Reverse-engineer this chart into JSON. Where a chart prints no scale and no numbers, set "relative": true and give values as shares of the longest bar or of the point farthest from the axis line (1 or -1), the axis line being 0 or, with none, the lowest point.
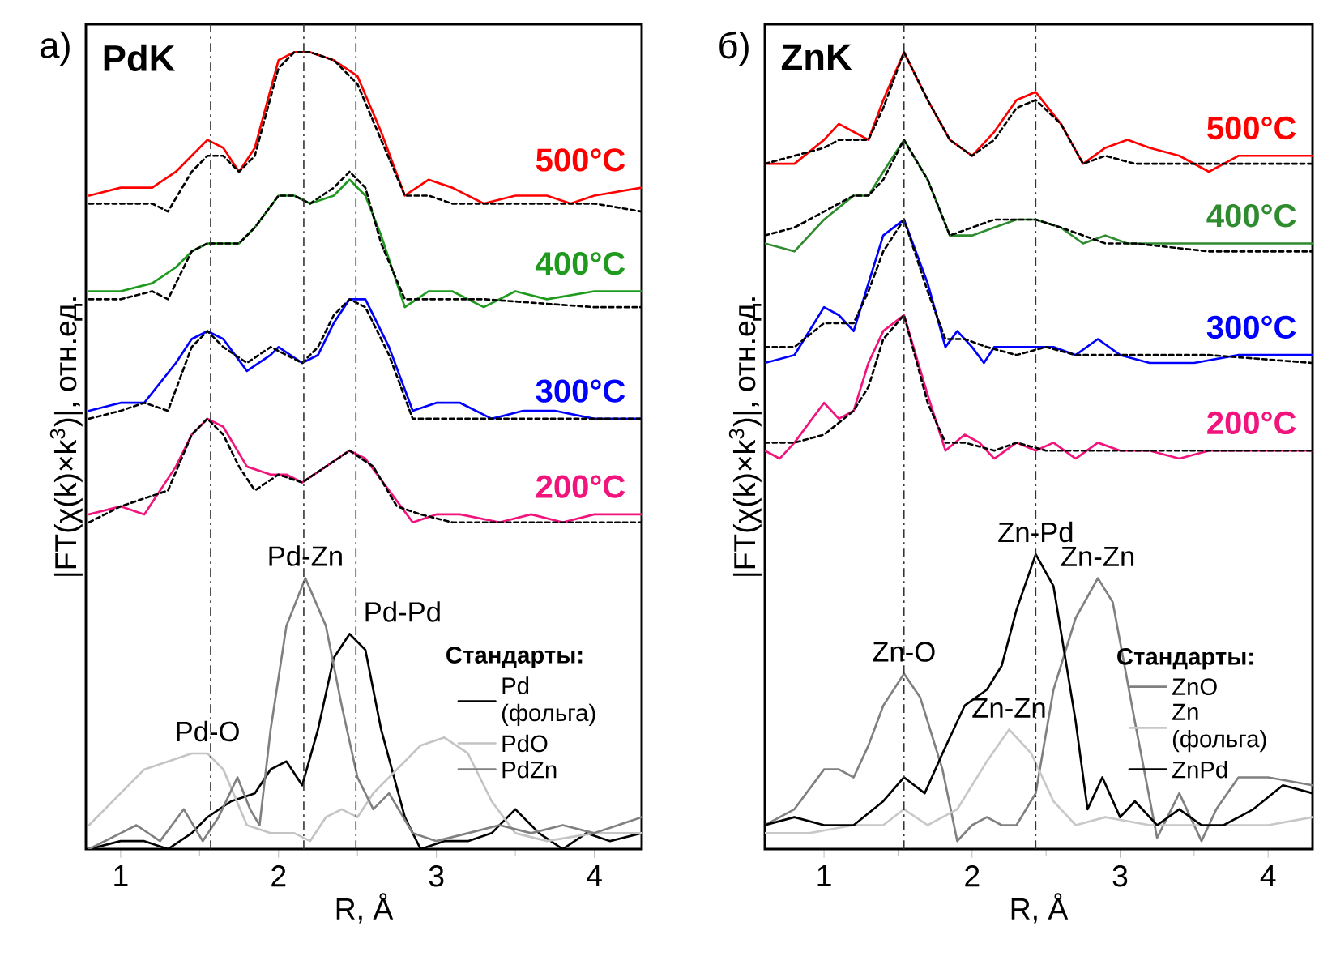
{
  "chart_data": [
    {
      "type": "line",
      "title": "а)",
      "xlabel": "R, Å",
      "ylabel": "|FT(χ(k)×k$^{3}$)|, отн.ед.",
      "relative": true,
      "xlim": [
        0.78,
        4.3
      ],
      "xticks": [
        1,
        2,
        3,
        4
      ],
      "legend": "bottom right",
      "legend_title": "Стандарты:",
      "annotations": [
        "PdK",
        {
          "text": "Pd-O",
          "x": 1.55,
          "y": 0.12
        },
        {
          "text": "Pd-Zn",
          "x": 2.17,
          "y": 0.34
        },
        {
          "text": "Pd-Pd",
          "x": 2.49,
          "y": 0.27
        }
      ],
      "ref_lines": [
        {
          "axis": "x",
          "value": 1.57,
          "color": "#333333"
        },
        {
          "axis": "x",
          "value": 2.16,
          "color": "#333333"
        },
        {
          "axis": "x",
          "value": 2.49,
          "color": "#333333"
        }
      ],
      "series": [
        {
          "name": "500°C",
          "color": "#ff0000",
          "x": [
            0.8,
            1.0,
            1.2,
            1.35,
            1.45,
            1.55,
            1.65,
            1.75,
            1.85,
            2.0,
            2.1,
            2.2,
            2.35,
            2.5,
            2.65,
            2.8,
            2.95,
            3.1,
            3.3,
            3.5,
            3.7,
            3.85,
            4.0,
            4.3
          ],
          "values": [
            0.82,
            0.83,
            0.83,
            0.85,
            0.87,
            0.89,
            0.88,
            0.85,
            0.88,
            0.99,
            1.0,
            1.0,
            0.99,
            0.97,
            0.9,
            0.82,
            0.84,
            0.83,
            0.81,
            0.82,
            0.82,
            0.81,
            0.82,
            0.83
          ]
        },
        {
          "color": "#000000",
          "line_style": "dotted",
          "x": [
            0.8,
            1.0,
            1.2,
            1.3,
            1.45,
            1.55,
            1.65,
            1.75,
            1.85,
            2.0,
            2.1,
            2.2,
            2.35,
            2.5,
            2.65,
            2.8,
            2.95,
            3.1,
            3.5,
            4.0,
            4.3
          ],
          "values": [
            0.81,
            0.81,
            0.81,
            0.8,
            0.85,
            0.87,
            0.87,
            0.85,
            0.87,
            0.98,
            1.0,
            1.0,
            0.99,
            0.96,
            0.89,
            0.82,
            0.82,
            0.81,
            0.81,
            0.81,
            0.8
          ]
        },
        {
          "name": "400°C",
          "color": "#1f9a1f",
          "x": [
            0.8,
            1.0,
            1.2,
            1.35,
            1.45,
            1.55,
            1.65,
            1.75,
            1.85,
            2.0,
            2.1,
            2.2,
            2.35,
            2.45,
            2.55,
            2.65,
            2.8,
            2.95,
            3.1,
            3.3,
            3.5,
            3.7,
            4.0,
            4.3
          ],
          "values": [
            0.7,
            0.7,
            0.71,
            0.73,
            0.75,
            0.76,
            0.76,
            0.76,
            0.78,
            0.82,
            0.82,
            0.81,
            0.82,
            0.84,
            0.82,
            0.77,
            0.68,
            0.7,
            0.7,
            0.68,
            0.7,
            0.69,
            0.7,
            0.7
          ]
        },
        {
          "color": "#000000",
          "line_style": "dotted",
          "x": [
            0.8,
            1.0,
            1.2,
            1.3,
            1.45,
            1.55,
            1.65,
            1.75,
            1.85,
            2.0,
            2.1,
            2.2,
            2.35,
            2.45,
            2.55,
            2.65,
            2.8,
            3.0,
            3.3,
            4.0,
            4.3
          ],
          "values": [
            0.69,
            0.69,
            0.7,
            0.69,
            0.75,
            0.76,
            0.76,
            0.76,
            0.78,
            0.82,
            0.82,
            0.81,
            0.83,
            0.85,
            0.83,
            0.76,
            0.69,
            0.69,
            0.69,
            0.68,
            0.68
          ]
        },
        {
          "name": "300°C",
          "color": "#0000ff",
          "x": [
            0.8,
            1.0,
            1.15,
            1.35,
            1.45,
            1.55,
            1.65,
            1.8,
            1.95,
            2.0,
            2.15,
            2.25,
            2.35,
            2.45,
            2.55,
            2.7,
            2.85,
            3.0,
            3.15,
            3.35,
            3.55,
            3.75,
            4.0,
            4.3
          ],
          "values": [
            0.55,
            0.56,
            0.56,
            0.61,
            0.64,
            0.65,
            0.64,
            0.6,
            0.62,
            0.63,
            0.61,
            0.62,
            0.66,
            0.69,
            0.69,
            0.63,
            0.55,
            0.56,
            0.56,
            0.54,
            0.55,
            0.55,
            0.54,
            0.54
          ]
        },
        {
          "color": "#000000",
          "line_style": "dotted",
          "x": [
            0.8,
            1.0,
            1.15,
            1.3,
            1.45,
            1.55,
            1.65,
            1.8,
            1.95,
            2.05,
            2.15,
            2.25,
            2.35,
            2.45,
            2.55,
            2.7,
            2.85,
            3.0,
            3.5,
            4.3
          ],
          "values": [
            0.54,
            0.55,
            0.56,
            0.55,
            0.63,
            0.65,
            0.63,
            0.61,
            0.63,
            0.62,
            0.61,
            0.63,
            0.67,
            0.69,
            0.68,
            0.62,
            0.54,
            0.54,
            0.54,
            0.54
          ]
        },
        {
          "name": "200°C",
          "color": "#f0147c",
          "x": [
            0.8,
            1.0,
            1.15,
            1.35,
            1.45,
            1.55,
            1.65,
            1.8,
            1.95,
            2.05,
            2.15,
            2.3,
            2.45,
            2.55,
            2.7,
            2.85,
            3.0,
            3.15,
            3.4,
            3.6,
            3.8,
            4.0,
            4.3
          ],
          "values": [
            0.42,
            0.43,
            0.42,
            0.48,
            0.52,
            0.54,
            0.53,
            0.48,
            0.47,
            0.47,
            0.46,
            0.48,
            0.5,
            0.49,
            0.45,
            0.41,
            0.42,
            0.42,
            0.41,
            0.42,
            0.41,
            0.42,
            0.42
          ]
        },
        {
          "color": "#000000",
          "line_style": "dotted",
          "x": [
            0.8,
            1.0,
            1.15,
            1.3,
            1.45,
            1.55,
            1.65,
            1.75,
            1.85,
            2.0,
            2.15,
            2.3,
            2.45,
            2.6,
            2.75,
            2.9,
            3.1,
            3.5,
            4.3
          ],
          "values": [
            0.41,
            0.43,
            0.44,
            0.45,
            0.52,
            0.54,
            0.52,
            0.48,
            0.45,
            0.47,
            0.46,
            0.48,
            0.5,
            0.48,
            0.43,
            0.42,
            0.41,
            0.41,
            0.41
          ]
        },
        {
          "name": "Pd (фольга)",
          "color": "#000000",
          "x": [
            0.8,
            1.0,
            1.15,
            1.3,
            1.45,
            1.55,
            1.7,
            1.85,
            1.95,
            2.05,
            2.15,
            2.25,
            2.35,
            2.45,
            2.55,
            2.65,
            2.8,
            2.9,
            3.05,
            3.2,
            3.35,
            3.5,
            3.65,
            3.8,
            3.95,
            4.1,
            4.3
          ],
          "values": [
            0.0,
            0.01,
            0.01,
            0.0,
            0.02,
            0.04,
            0.06,
            0.07,
            0.1,
            0.11,
            0.08,
            0.15,
            0.24,
            0.27,
            0.25,
            0.15,
            0.04,
            0.0,
            0.01,
            0.01,
            0.02,
            0.05,
            0.02,
            0.0,
            0.02,
            0.01,
            0.02
          ]
        },
        {
          "name": "PdO",
          "color": "#c4c4c4",
          "x": [
            0.8,
            1.0,
            1.15,
            1.3,
            1.45,
            1.55,
            1.65,
            1.8,
            1.95,
            2.1,
            2.2,
            2.3,
            2.4,
            2.5,
            2.6,
            2.75,
            2.9,
            3.05,
            3.2,
            3.35,
            3.5,
            3.7,
            4.0,
            4.3
          ],
          "values": [
            0.03,
            0.07,
            0.1,
            0.11,
            0.12,
            0.12,
            0.1,
            0.03,
            0.02,
            0.02,
            0.01,
            0.04,
            0.05,
            0.04,
            0.07,
            0.1,
            0.13,
            0.14,
            0.12,
            0.06,
            0.02,
            0.01,
            0.02,
            0.02
          ]
        },
        {
          "name": "PdZn",
          "color": "#808080",
          "x": [
            0.8,
            1.0,
            1.1,
            1.25,
            1.4,
            1.52,
            1.62,
            1.74,
            1.82,
            1.88,
            1.95,
            2.05,
            2.17,
            2.3,
            2.4,
            2.5,
            2.6,
            2.7,
            2.85,
            3.0,
            3.2,
            3.4,
            3.6,
            3.8,
            4.0,
            4.3
          ],
          "values": [
            0.0,
            0.02,
            0.03,
            0.01,
            0.05,
            0.01,
            0.04,
            0.09,
            0.05,
            0.03,
            0.15,
            0.28,
            0.34,
            0.28,
            0.18,
            0.09,
            0.05,
            0.07,
            0.02,
            0.01,
            0.02,
            0.03,
            0.02,
            0.03,
            0.02,
            0.04
          ]
        }
      ]
    },
    {
      "type": "line",
      "title": "б)",
      "xlabel": "R, Å",
      "ylabel": "|FT(χ(k)×k$^{3}$)|, отн.ед.",
      "relative": true,
      "xlim": [
        0.6,
        4.3
      ],
      "xticks": [
        1,
        2,
        3,
        4
      ],
      "legend": "bottom right",
      "legend_title": "Стандарты:",
      "annotations": [
        "ZnK",
        {
          "text": "Zn-O",
          "x": 1.54,
          "y": 0.22
        },
        {
          "text": "Zn-Zn",
          "x": 2.25,
          "y": 0.15
        },
        {
          "text": "Zn-Pd",
          "x": 2.43,
          "y": 0.37
        },
        {
          "text": "Zn-Zn",
          "x": 2.85,
          "y": 0.34
        }
      ],
      "ref_lines": [
        {
          "axis": "x",
          "value": 1.54,
          "color": "#333333"
        },
        {
          "axis": "x",
          "value": 2.43,
          "color": "#333333"
        }
      ],
      "series": [
        {
          "name": "500°C",
          "color": "#ff0000",
          "x": [
            0.6,
            0.8,
            1.0,
            1.1,
            1.2,
            1.3,
            1.4,
            1.54,
            1.7,
            1.85,
            2.0,
            2.15,
            2.3,
            2.43,
            2.6,
            2.75,
            2.9,
            3.05,
            3.2,
            3.4,
            3.6,
            3.8,
            4.0,
            4.3
          ],
          "values": [
            0.86,
            0.86,
            0.89,
            0.91,
            0.9,
            0.89,
            0.94,
            1.0,
            0.94,
            0.89,
            0.87,
            0.9,
            0.94,
            0.95,
            0.91,
            0.86,
            0.88,
            0.89,
            0.88,
            0.87,
            0.85,
            0.87,
            0.87,
            0.87
          ]
        },
        {
          "color": "#000000",
          "line_style": "dotted",
          "x": [
            0.6,
            0.8,
            1.0,
            1.1,
            1.2,
            1.3,
            1.4,
            1.54,
            1.7,
            1.85,
            2.0,
            2.15,
            2.3,
            2.43,
            2.6,
            2.75,
            2.9,
            3.1,
            3.5,
            4.0,
            4.3
          ],
          "values": [
            0.86,
            0.87,
            0.88,
            0.89,
            0.89,
            0.89,
            0.93,
            1.0,
            0.94,
            0.89,
            0.87,
            0.89,
            0.93,
            0.94,
            0.91,
            0.86,
            0.87,
            0.86,
            0.86,
            0.86,
            0.86
          ]
        },
        {
          "name": "400°C",
          "color": "#2e8b2e",
          "x": [
            0.6,
            0.8,
            1.0,
            1.2,
            1.3,
            1.4,
            1.54,
            1.7,
            1.85,
            2.0,
            2.15,
            2.3,
            2.43,
            2.6,
            2.75,
            2.9,
            3.05,
            3.3,
            3.6,
            4.0,
            4.3
          ],
          "values": [
            0.76,
            0.75,
            0.79,
            0.82,
            0.82,
            0.85,
            0.89,
            0.84,
            0.77,
            0.77,
            0.78,
            0.79,
            0.79,
            0.78,
            0.76,
            0.77,
            0.76,
            0.76,
            0.76,
            0.76,
            0.76
          ]
        },
        {
          "color": "#000000",
          "line_style": "dotted",
          "x": [
            0.6,
            0.8,
            1.0,
            1.2,
            1.3,
            1.4,
            1.54,
            1.7,
            1.85,
            2.0,
            2.15,
            2.3,
            2.43,
            2.6,
            2.75,
            2.9,
            3.1,
            3.6,
            4.3
          ],
          "values": [
            0.77,
            0.78,
            0.8,
            0.82,
            0.82,
            0.84,
            0.89,
            0.84,
            0.77,
            0.78,
            0.79,
            0.79,
            0.79,
            0.78,
            0.77,
            0.76,
            0.76,
            0.75,
            0.75
          ]
        },
        {
          "name": "300°C",
          "color": "#0000ff",
          "x": [
            0.6,
            0.8,
            1.0,
            1.1,
            1.2,
            1.3,
            1.4,
            1.54,
            1.7,
            1.82,
            1.9,
            2.0,
            2.08,
            2.15,
            2.3,
            2.43,
            2.55,
            2.7,
            2.85,
            3.0,
            3.2,
            3.5,
            3.8,
            4.0,
            4.3
          ],
          "values": [
            0.61,
            0.62,
            0.68,
            0.67,
            0.65,
            0.71,
            0.77,
            0.79,
            0.71,
            0.63,
            0.65,
            0.63,
            0.61,
            0.63,
            0.63,
            0.63,
            0.63,
            0.62,
            0.64,
            0.62,
            0.61,
            0.61,
            0.62,
            0.62,
            0.62
          ]
        },
        {
          "color": "#000000",
          "line_style": "dotted",
          "x": [
            0.6,
            0.8,
            1.0,
            1.2,
            1.3,
            1.4,
            1.54,
            1.7,
            1.82,
            1.95,
            2.1,
            2.3,
            2.5,
            2.7,
            2.9,
            3.2,
            3.6,
            4.3
          ],
          "values": [
            0.63,
            0.63,
            0.66,
            0.66,
            0.7,
            0.75,
            0.79,
            0.7,
            0.64,
            0.64,
            0.63,
            0.62,
            0.63,
            0.62,
            0.62,
            0.62,
            0.62,
            0.61
          ]
        },
        {
          "name": "200°C",
          "color": "#f0147c",
          "x": [
            0.6,
            0.7,
            0.8,
            1.0,
            1.1,
            1.2,
            1.3,
            1.4,
            1.54,
            1.7,
            1.82,
            1.95,
            2.05,
            2.15,
            2.3,
            2.43,
            2.55,
            2.7,
            2.85,
            3.0,
            3.2,
            3.4,
            3.6,
            3.8,
            4.3
          ],
          "values": [
            0.5,
            0.49,
            0.51,
            0.56,
            0.54,
            0.55,
            0.61,
            0.65,
            0.67,
            0.57,
            0.5,
            0.52,
            0.51,
            0.49,
            0.51,
            0.5,
            0.51,
            0.49,
            0.51,
            0.5,
            0.5,
            0.49,
            0.5,
            0.5,
            0.5
          ]
        },
        {
          "color": "#000000",
          "line_style": "dotted",
          "x": [
            0.6,
            0.8,
            1.0,
            1.2,
            1.3,
            1.4,
            1.54,
            1.7,
            1.82,
            1.95,
            2.15,
            2.3,
            2.5,
            2.7,
            3.0,
            3.5,
            4.3
          ],
          "values": [
            0.51,
            0.51,
            0.52,
            0.55,
            0.58,
            0.64,
            0.67,
            0.56,
            0.51,
            0.51,
            0.5,
            0.51,
            0.5,
            0.5,
            0.5,
            0.5,
            0.5
          ]
        },
        {
          "name": "ZnO",
          "color": "#808080",
          "x": [
            0.6,
            0.8,
            1.0,
            1.1,
            1.2,
            1.3,
            1.4,
            1.54,
            1.65,
            1.8,
            1.9,
            2.0,
            2.1,
            2.2,
            2.3,
            2.43,
            2.55,
            2.7,
            2.85,
            2.95,
            3.1,
            3.25,
            3.4,
            3.55,
            3.65,
            3.8,
            4.0,
            4.3
          ],
          "values": [
            0.03,
            0.05,
            0.1,
            0.1,
            0.09,
            0.13,
            0.18,
            0.22,
            0.19,
            0.1,
            0.01,
            0.03,
            0.04,
            0.03,
            0.03,
            0.07,
            0.2,
            0.29,
            0.34,
            0.31,
            0.16,
            0.014,
            0.07,
            0.01,
            0.05,
            0.09,
            0.09,
            0.08
          ]
        },
        {
          "name": "Zn (фольга)",
          "color": "#c8c8c8",
          "x": [
            0.6,
            0.9,
            1.2,
            1.4,
            1.54,
            1.7,
            1.9,
            2.1,
            2.25,
            2.4,
            2.55,
            2.7,
            2.9,
            3.2,
            3.5,
            3.8,
            4.0,
            4.3
          ],
          "values": [
            0.02,
            0.02,
            0.03,
            0.03,
            0.05,
            0.03,
            0.05,
            0.11,
            0.15,
            0.12,
            0.06,
            0.03,
            0.04,
            0.03,
            0.03,
            0.03,
            0.03,
            0.04
          ]
        },
        {
          "name": "ZnPd",
          "color": "#000000",
          "x": [
            0.6,
            0.8,
            1.0,
            1.2,
            1.4,
            1.54,
            1.68,
            1.8,
            1.95,
            2.1,
            2.2,
            2.3,
            2.43,
            2.55,
            2.7,
            2.78,
            2.88,
            3.0,
            3.1,
            3.25,
            3.4,
            3.55,
            3.7,
            3.9,
            4.1,
            4.3
          ],
          "values": [
            0.03,
            0.04,
            0.03,
            0.03,
            0.06,
            0.09,
            0.07,
            0.12,
            0.18,
            0.2,
            0.23,
            0.3,
            0.37,
            0.33,
            0.16,
            0.05,
            0.09,
            0.04,
            0.06,
            0.03,
            0.05,
            0.03,
            0.03,
            0.05,
            0.08,
            0.07
          ]
        }
      ]
    }
  ]
}
